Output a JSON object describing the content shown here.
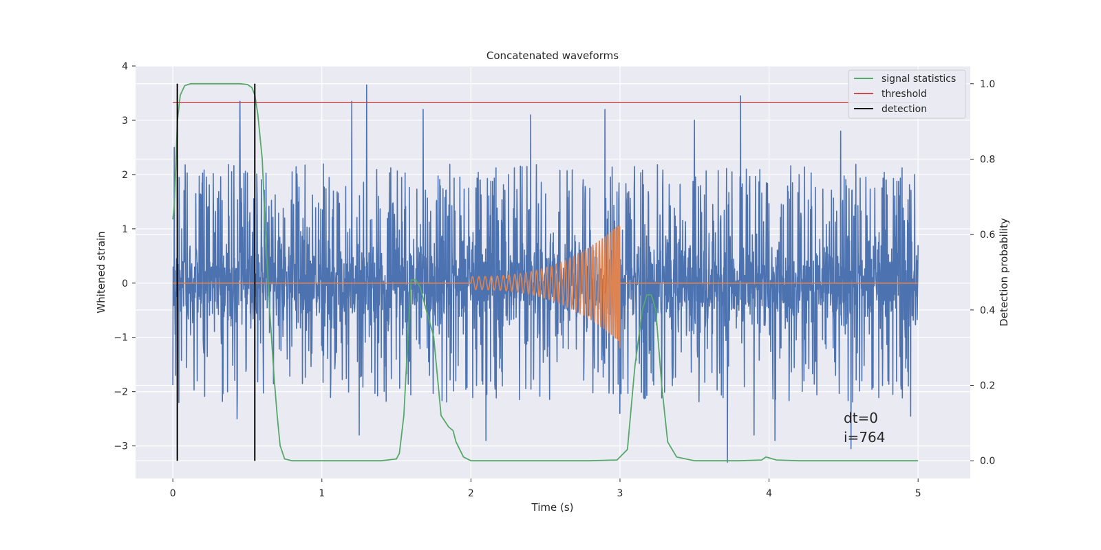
{
  "chart_data": {
    "type": "line",
    "title": "Concatenated waveforms",
    "xlabel": "Time (s)",
    "ylabel_left": "Whitened strain",
    "ylabel_right": "Detection probability",
    "xlim": [
      -0.25,
      5.35
    ],
    "ylim_left": [
      -3.6,
      4.0
    ],
    "ylim_right": [
      -0.047,
      1.047
    ],
    "x_ticks": [
      0,
      1,
      2,
      3,
      4,
      5
    ],
    "y_ticks_left": [
      -3,
      -2,
      -1,
      0,
      1,
      2,
      3,
      4
    ],
    "y_ticks_right": [
      0.0,
      0.2,
      0.4,
      0.6,
      0.8,
      1.0
    ],
    "y_tick_labels_left": [
      "−3",
      "−2",
      "−1",
      "0",
      "1",
      "2",
      "3",
      "4"
    ],
    "y_tick_labels_right": [
      "0.0",
      "0.2",
      "0.4",
      "0.6",
      "0.8",
      "1.0"
    ],
    "grid": true,
    "legend_position": "top-right",
    "colors": {
      "strain": "#4c72b0",
      "injection": "#dd8452",
      "signal_statistics": "#55a868",
      "threshold": "#c44e52",
      "detection": "#000000",
      "background": "#eaeaf2",
      "grid": "#ffffff"
    },
    "series": [
      {
        "name": "",
        "axis": "left",
        "description": "whitened strain noise",
        "x_range": [
          0,
          5
        ],
        "envelope_typical": [
          -1.5,
          2.2
        ],
        "spikes": [
          {
            "x": 0.01,
            "y": 2.5
          },
          {
            "x": 0.02,
            "y": -1.7
          },
          {
            "x": 0.04,
            "y": -2.2
          },
          {
            "x": 0.45,
            "y": 3.35
          },
          {
            "x": 0.43,
            "y": -2.5
          },
          {
            "x": 1.2,
            "y": 3.35
          },
          {
            "x": 1.3,
            "y": 3.65
          },
          {
            "x": 1.25,
            "y": -2.8
          },
          {
            "x": 1.68,
            "y": 3.2
          },
          {
            "x": 2.1,
            "y": -2.9
          },
          {
            "x": 2.4,
            "y": 3.1
          },
          {
            "x": 2.9,
            "y": 3.2
          },
          {
            "x": 3.0,
            "y": -2.4
          },
          {
            "x": 3.5,
            "y": 3.0
          },
          {
            "x": 3.72,
            "y": -3.3
          },
          {
            "x": 3.81,
            "y": 3.45
          },
          {
            "x": 3.9,
            "y": -2.8
          },
          {
            "x": 4.04,
            "y": -2.9
          },
          {
            "x": 4.48,
            "y": 2.8
          },
          {
            "x": 4.55,
            "y": -3.05
          },
          {
            "x": 4.95,
            "y": -2.45
          },
          {
            "x": 5.0,
            "y": 0.7
          }
        ]
      },
      {
        "name": "",
        "axis": "left",
        "description": "injected chirp",
        "chirp_start": 2.0,
        "chirp_end": 3.0,
        "amp_start": 0.12,
        "amp_end": 1.1,
        "cycles": 37
      },
      {
        "name": "signal statistics",
        "axis": "right",
        "x": [
          0.0,
          0.01,
          0.02,
          0.03,
          0.05,
          0.08,
          0.12,
          0.2,
          0.35,
          0.45,
          0.5,
          0.53,
          0.55,
          0.57,
          0.6,
          0.62,
          0.65,
          0.68,
          0.7,
          0.72,
          0.75,
          0.8,
          1.0,
          1.2,
          1.4,
          1.5,
          1.52,
          1.55,
          1.58,
          1.6,
          1.63,
          1.66,
          1.7,
          1.75,
          1.8,
          1.85,
          1.88,
          1.9,
          1.95,
          2.0,
          2.2,
          2.5,
          2.8,
          2.98,
          3.05,
          3.1,
          3.15,
          3.18,
          3.21,
          3.24,
          3.28,
          3.32,
          3.38,
          3.5,
          3.8,
          3.95,
          3.98,
          4.05,
          4.2,
          4.5,
          5.0
        ],
        "y": [
          0.64,
          0.68,
          0.78,
          0.9,
          0.97,
          0.995,
          1.0,
          1.0,
          1.0,
          1.0,
          0.998,
          0.99,
          0.97,
          0.92,
          0.8,
          0.62,
          0.4,
          0.22,
          0.12,
          0.04,
          0.005,
          0.0,
          0.0,
          0.0,
          0.0,
          0.005,
          0.02,
          0.12,
          0.35,
          0.48,
          0.48,
          0.46,
          0.4,
          0.33,
          0.12,
          0.09,
          0.08,
          0.05,
          0.01,
          0.0,
          0.0,
          0.0,
          0.0,
          0.002,
          0.03,
          0.25,
          0.4,
          0.44,
          0.44,
          0.4,
          0.2,
          0.05,
          0.01,
          0.0,
          0.0,
          0.002,
          0.01,
          0.002,
          0.0,
          0.0,
          0.0
        ]
      },
      {
        "name": "threshold",
        "axis": "right",
        "x": [
          0,
          5
        ],
        "y": [
          0.95,
          0.95
        ]
      },
      {
        "name": "detection",
        "axis": "right",
        "vlines": [
          0.03,
          0.55
        ],
        "y": [
          0.0,
          1.0
        ]
      }
    ],
    "annotations": [
      "dt=0",
      "i=764"
    ]
  }
}
